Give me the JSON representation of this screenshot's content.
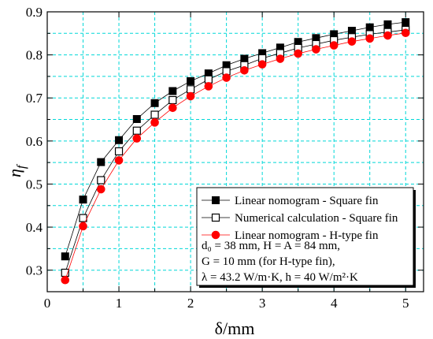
{
  "chart_data": {
    "type": "line",
    "xlabel": "δ/mm",
    "ylabel": "η_f",
    "xlim": [
      0,
      5.25
    ],
    "ylim": [
      0.25,
      0.9
    ],
    "grid": true,
    "x_ticks": [
      "0",
      "1",
      "2",
      "3",
      "4",
      "5"
    ],
    "y_ticks": [
      "0.3",
      "0.4",
      "0.5",
      "0.6",
      "0.7",
      "0.8",
      "0.9"
    ],
    "x": [
      0.25,
      0.5,
      0.75,
      1.0,
      1.25,
      1.5,
      1.75,
      2.0,
      2.25,
      2.5,
      2.75,
      3.0,
      3.25,
      3.5,
      3.75,
      4.0,
      4.25,
      4.5,
      4.75,
      5.0
    ],
    "series": [
      {
        "name": "Linear nomogram - Square fin",
        "marker": "filled-square",
        "color": "#000000",
        "values": [
          0.332,
          0.464,
          0.551,
          0.602,
          0.651,
          0.688,
          0.716,
          0.739,
          0.757,
          0.776,
          0.791,
          0.804,
          0.817,
          0.83,
          0.839,
          0.848,
          0.856,
          0.864,
          0.871,
          0.876
        ]
      },
      {
        "name": "Numerical calculation - Square fin",
        "marker": "open-square",
        "color": "#000000",
        "values": [
          0.294,
          0.421,
          0.509,
          0.576,
          0.624,
          0.661,
          0.695,
          0.72,
          0.743,
          0.762,
          0.776,
          0.792,
          0.804,
          0.816,
          0.825,
          0.834,
          0.841,
          0.848,
          0.853,
          0.858
        ]
      },
      {
        "name": "Linear nomogram - H-type fin",
        "marker": "filled-circle",
        "color": "#ff0000",
        "values": [
          0.277,
          0.402,
          0.488,
          0.555,
          0.606,
          0.643,
          0.677,
          0.704,
          0.727,
          0.747,
          0.764,
          0.778,
          0.791,
          0.803,
          0.813,
          0.822,
          0.831,
          0.838,
          0.845,
          0.851
        ]
      }
    ],
    "legend_position": "lower-right",
    "notes": [
      "d₀ = 38 mm, H = A = 84 mm,",
      "G = 10 mm (for H-type fin),",
      "λ = 43.2 W/m·K, h = 40 W/m²·K"
    ]
  },
  "colors": {
    "grid": "#00d8d8",
    "axis": "#000000",
    "h_type_series": "#ff0000"
  }
}
